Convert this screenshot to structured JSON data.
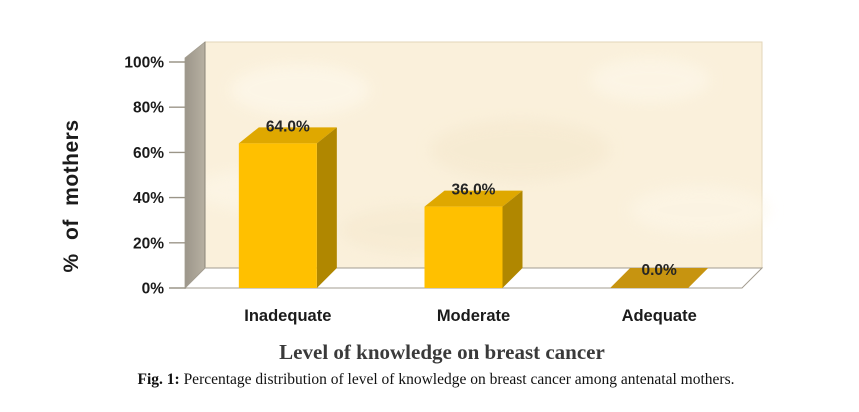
{
  "figure": {
    "caption_prefix": "Fig. 1:",
    "caption_text": " Percentage distribution of level of knowledge on breast cancer among antenatal mothers."
  },
  "chart_data": {
    "type": "bar",
    "style": "3d-column",
    "title": "",
    "xlabel": "Level of knowledge on breast cancer",
    "ylabel": "% of mothers",
    "categories": [
      "Inadequate",
      "Moderate",
      "Adequate"
    ],
    "values": [
      64.0,
      36.0,
      0.0
    ],
    "data_labels": [
      "64.0%",
      "36.0%",
      "0.0%"
    ],
    "ylim": [
      0,
      100
    ],
    "ytick_labels": [
      "0%",
      "20%",
      "40%",
      "60%",
      "80%",
      "100%"
    ],
    "ytick_values": [
      0,
      20,
      40,
      60,
      80,
      100
    ],
    "grid": false,
    "legend": "none",
    "colors": {
      "bar_front": "#FFC000",
      "bar_top": "#DFA800",
      "bar_side": "#B08700",
      "bar_flat": "#C79410",
      "back_wall": "#FAF0DB",
      "back_wall_edge": "#E3D6B8",
      "side_wall_dark": "#9C968A",
      "side_wall_light": "#B7B0A2",
      "floor": "#FFFFFF",
      "edge": "#A39D90",
      "tick": "#9B9588",
      "axis_text": "#1B1B1B",
      "data_label": "#252525",
      "axis_title": "#3A3A3A"
    }
  }
}
